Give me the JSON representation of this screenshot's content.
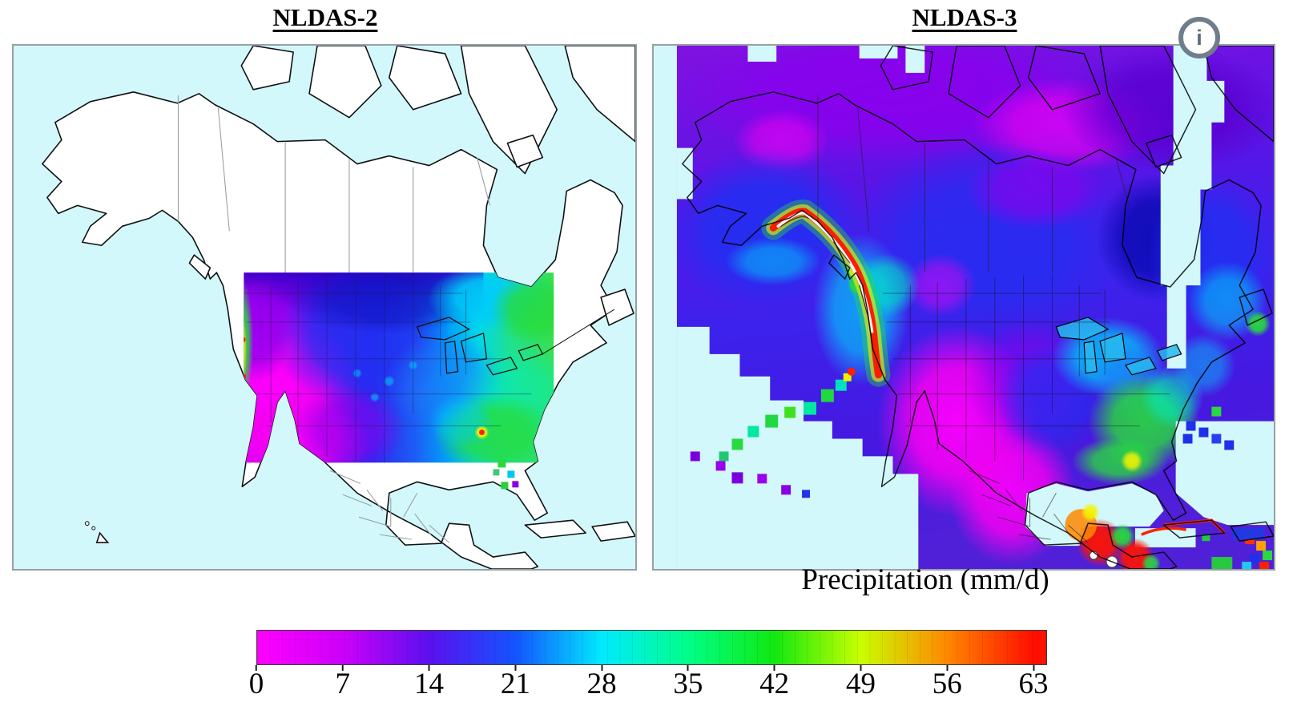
{
  "figure": {
    "panels": [
      {
        "title": "NLDAS-2"
      },
      {
        "title": "NLDAS-3"
      }
    ],
    "colorbar": {
      "label": "Precipitation (mm/d)",
      "unit": "mm/d",
      "min": 0,
      "max_labeled": 63,
      "axis_max": 64.1,
      "ticks": [
        "0",
        "7",
        "14",
        "21",
        "28",
        "35",
        "42",
        "49",
        "56",
        "63"
      ],
      "stops": [
        {
          "value": 0,
          "color": "#ff00ff"
        },
        {
          "value": 7,
          "color": "#cc00fa"
        },
        {
          "value": 14,
          "color": "#5a10f0"
        },
        {
          "value": 21,
          "color": "#1355ff"
        },
        {
          "value": 28,
          "color": "#00eaff"
        },
        {
          "value": 35,
          "color": "#00ff88"
        },
        {
          "value": 42,
          "color": "#10e810"
        },
        {
          "value": 49,
          "color": "#c8ff00"
        },
        {
          "value": 56,
          "color": "#ff8800"
        },
        {
          "value": 63,
          "color": "#ff0f00"
        }
      ]
    },
    "info_icon_glyph": "i"
  },
  "palette": {
    "ocean": "#d2f8fb",
    "land": "#ffffff",
    "coastline": "#111111",
    "province_borders": "#9aa0a4",
    "map_frame": "#97a0a5",
    "info_icon_ring": "#6f7e8a"
  }
}
